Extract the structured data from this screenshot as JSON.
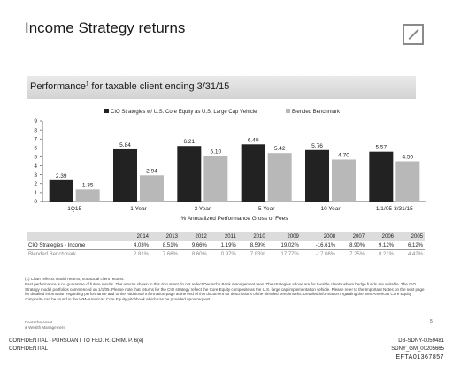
{
  "page": {
    "title": "Income Strategy returns",
    "section_title": "Performance",
    "section_title_sup": "1",
    "section_title_rest": " for taxable client ending 3/31/15"
  },
  "chart_data": {
    "type": "bar",
    "title": "",
    "categories": [
      "1Q15",
      "1 Year",
      "3 Year",
      "5 Year",
      "10 Year",
      "1/1/05-3/31/15"
    ],
    "series": [
      {
        "name": "CIO Strategies w/ U.S. Core Equity as U.S. Large Cap Vehicle",
        "color": "#222222",
        "values": [
          2.39,
          5.84,
          6.21,
          6.4,
          5.76,
          5.57
        ]
      },
      {
        "name": "Blended Benchmark",
        "color": "#b8b8b8",
        "values": [
          1.35,
          2.94,
          5.1,
          5.42,
          4.7,
          4.5
        ]
      }
    ],
    "value_labels": [
      [
        "2.39",
        "5.84",
        "6.21",
        "6.40",
        "5.76",
        "5.57"
      ],
      [
        "1.35",
        "2.94",
        "5.10",
        "5.42",
        "4.70",
        "4.50"
      ]
    ],
    "xlabel": "% Annualized Performance Gross of Fees",
    "ylabel": "",
    "ylim": [
      0,
      9
    ],
    "yticks": [
      "0",
      "1",
      "2",
      "3",
      "4",
      "5",
      "6",
      "7",
      "8",
      "9"
    ],
    "grid": false,
    "legend_position": "top-center"
  },
  "table": {
    "years": [
      "2014",
      "2013",
      "2012",
      "2011",
      "2010",
      "2009",
      "2008",
      "2007",
      "2006",
      "2005"
    ],
    "rows": [
      {
        "label": "CIO Strategies - Income",
        "values": [
          "4.03%",
          "8.51%",
          "9.66%",
          "1.19%",
          "8.59%",
          "19.02%",
          "-16.61%",
          "8.90%",
          "9.12%",
          "6.12%"
        ]
      },
      {
        "label": "Blended Benchmark",
        "values": [
          "2.81%",
          "7.66%",
          "8.60%",
          "0.97%",
          "7.83%",
          "17.77%",
          "-17.06%",
          "7.25%",
          "8.21%",
          "4.42%"
        ]
      }
    ]
  },
  "footnotes": {
    "sup_note": "(1) Chart reflects model returns, not actual client returns.",
    "body": "Past performance is no guarantee of future results. The returns shown in this document do not reflect Deutsche Bank management fees. The strategies above are for taxable clients where hedge funds are suitable. The CIO Strategy model portfolios commenced on 1/1/05. Please note that returns for the CIO strategy reflect the Core Equity composite as the U.S. large cap implementation vehicle. Please refer to the Important Notes on the next page for detailed information regarding performance and to the Additional Information page at the end of this document for descriptions of the blended benchmarks. Detailed information regarding the WM-Americas Core Equity composite can be found in the WM–Americas Core Equity pitchbook which can be provided upon request."
  },
  "footer": {
    "bank_line1": "Deutsche Asset",
    "bank_line2": "& Wealth Management",
    "page_number": "5",
    "confidential_1": "CONFIDENTIAL - PURSUANT TO FED. R. CRIM. P. 6(e)",
    "confidential_2": "CONFIDENTIAL",
    "doc_id_1": "DB-SDNY-0059481",
    "doc_id_2": "SDNY_GM_00205665",
    "doc_id_3": "EFTA01367857"
  },
  "logo": {
    "icon": "deutsche-bank-logo-icon",
    "color": "#8a8a8a"
  }
}
